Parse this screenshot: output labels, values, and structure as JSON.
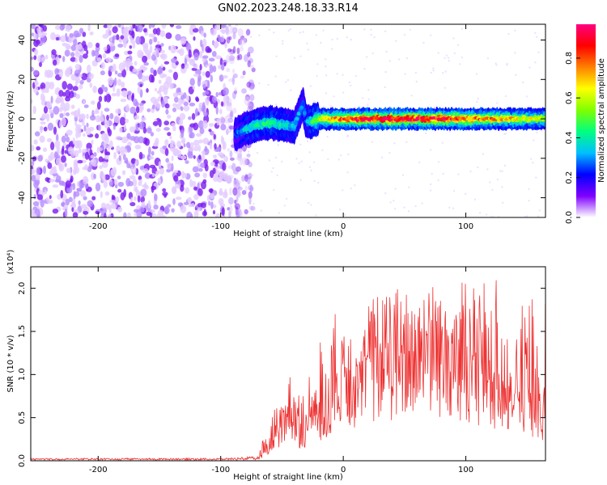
{
  "figure": {
    "title": "GN02.2023.248.18.33.R14"
  },
  "chart_data": [
    {
      "type": "heatmap",
      "xlabel": "Height of straight line (km)",
      "ylabel": "Frequency (Hz)",
      "xlim": [
        -255,
        165
      ],
      "ylim": [
        -50,
        48
      ],
      "xticks": [
        -200,
        -100,
        0,
        100
      ],
      "yticks": [
        -40,
        -20,
        0,
        20,
        40
      ],
      "colorbar": {
        "label": "Normalized spectral amplitude",
        "ticks": [
          "0.0",
          "0.2",
          "0.4",
          "0.6",
          "0.8"
        ],
        "range": [
          0,
          0.97
        ],
        "colors": [
          "#ffffff",
          "#7f00ff",
          "#0000ff",
          "#00bfff",
          "#00ff80",
          "#80ff00",
          "#ffff00",
          "#ff8000",
          "#ff0000",
          "#ff0080"
        ]
      },
      "regions": {
        "noise": {
          "x": [
            -255,
            -85
          ],
          "level": 0.1
        },
        "band": [
          {
            "x": -88,
            "freq": -8,
            "level": 0.25
          },
          {
            "x": -80,
            "freq": -5,
            "level": 0.35
          },
          {
            "x": -70,
            "freq": -3,
            "level": 0.4
          },
          {
            "x": -60,
            "freq": -2,
            "level": 0.45
          },
          {
            "x": -50,
            "freq": -3,
            "level": 0.4
          },
          {
            "x": -40,
            "freq": -4,
            "level": 0.35
          },
          {
            "x": -33,
            "freq": 8,
            "level": 0.3
          },
          {
            "x": -30,
            "freq": -2,
            "level": 0.3
          },
          {
            "x": -20,
            "freq": 0,
            "level": 0.6
          },
          {
            "x": 0,
            "freq": 0,
            "level": 0.85
          },
          {
            "x": 40,
            "freq": 0,
            "level": 0.95
          },
          {
            "x": 80,
            "freq": 0,
            "level": 0.9
          },
          {
            "x": 120,
            "freq": 0,
            "level": 0.75
          },
          {
            "x": 165,
            "freq": 0,
            "level": 0.6
          }
        ]
      }
    },
    {
      "type": "line",
      "xlabel": "Height of straight line (km)",
      "ylabel": "SNR (10 * v/v)",
      "yscale_label": "(x10⁴)",
      "xlim": [
        -255,
        165
      ],
      "ylim": [
        0,
        2.25
      ],
      "xticks": [
        -200,
        -100,
        0,
        100
      ],
      "yticks": [
        "0.0",
        "0.5",
        "1.0",
        "1.5",
        "2.0"
      ],
      "series": [
        {
          "color": "#ee3333",
          "x": [
            -255,
            -150,
            -100,
            -70,
            -60,
            -55,
            -50,
            -45,
            -40,
            -35,
            -30,
            -25,
            -20,
            -15,
            -10,
            0,
            10,
            20,
            30,
            40,
            50,
            60,
            70,
            80,
            90,
            100,
            110,
            120,
            130,
            140,
            150,
            165
          ],
          "y": [
            0.02,
            0.02,
            0.02,
            0.03,
            0.15,
            0.3,
            0.45,
            0.5,
            0.55,
            0.4,
            0.35,
            0.6,
            0.7,
            0.5,
            0.9,
            1.05,
            1.1,
            1.2,
            1.3,
            1.3,
            1.4,
            1.45,
            1.45,
            1.4,
            1.35,
            1.25,
            1.1,
            0.95,
            0.85,
            0.8,
            0.75,
            0.6
          ],
          "peaks": [
            0.03,
            0.03,
            0.03,
            0.05,
            0.5,
            0.75,
            0.9,
            0.95,
            1.05,
            0.8,
            0.8,
            1.45,
            1.55,
            1.1,
            1.8,
            1.6,
            1.75,
            1.9,
            2.0,
            2.0,
            2.05,
            2.0,
            2.1,
            2.05,
            2.1,
            2.15,
            2.05,
            2.2,
            2.0,
            2.0,
            2.05,
            1.95
          ]
        }
      ]
    }
  ]
}
